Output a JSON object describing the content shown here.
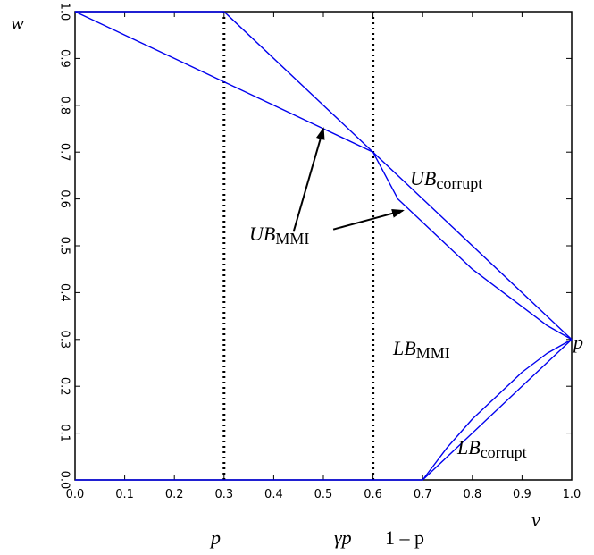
{
  "chart_data": {
    "type": "line",
    "xlim": [
      0,
      1
    ],
    "ylim": [
      0,
      1
    ],
    "grid": false,
    "x_ticks": [
      "0.0",
      "0.1",
      "0.2",
      "0.3",
      "0.4",
      "0.5",
      "0.6",
      "0.7",
      "0.8",
      "0.9",
      "1.0"
    ],
    "y_ticks": [
      "0.0",
      "0.1",
      "0.2",
      "0.3",
      "0.4",
      "0.5",
      "0.6",
      "0.7",
      "0.8",
      "0.9",
      "1.0"
    ],
    "line_color": "#0000ee",
    "vlines": [
      0.3,
      0.6
    ],
    "series": [
      {
        "id": "ub-corrupt",
        "points": [
          [
            0,
            1
          ],
          [
            0.3,
            1
          ],
          [
            0.6,
            0.7
          ],
          [
            1,
            0.3
          ]
        ]
      },
      {
        "id": "ub-mmi",
        "points": [
          [
            0,
            1
          ],
          [
            0.1,
            0.95
          ],
          [
            0.2,
            0.9
          ],
          [
            0.3,
            0.85
          ],
          [
            0.4,
            0.8
          ],
          [
            0.5,
            0.75
          ],
          [
            0.6,
            0.7
          ],
          [
            0.65,
            0.6
          ],
          [
            0.7,
            0.55
          ],
          [
            0.75,
            0.5
          ],
          [
            0.8,
            0.45
          ],
          [
            0.85,
            0.41
          ],
          [
            0.9,
            0.37
          ],
          [
            0.95,
            0.33
          ],
          [
            1,
            0.3
          ]
        ]
      },
      {
        "id": "lb-corrupt",
        "points": [
          [
            0,
            0
          ],
          [
            0.7,
            0
          ],
          [
            1,
            0.3
          ]
        ]
      },
      {
        "id": "lb-mmi",
        "points": [
          [
            0.7,
            0
          ],
          [
            0.75,
            0.07
          ],
          [
            0.8,
            0.13
          ],
          [
            0.85,
            0.18
          ],
          [
            0.9,
            0.23
          ],
          [
            0.95,
            0.27
          ],
          [
            1,
            0.3
          ]
        ]
      }
    ],
    "labels": {
      "y_axis": "w",
      "x_axis": "v",
      "p_right": "p",
      "below_axis": [
        {
          "at": 0.3,
          "text": "p"
        },
        {
          "at": 0.6,
          "text": "γp"
        },
        {
          "at": 0.7,
          "text": "1 – p"
        }
      ],
      "ub_corrupt": {
        "base": "UB",
        "sub": "corrupt"
      },
      "ub_mmi": {
        "base": "UB",
        "sub": "MMI"
      },
      "lb_mmi": {
        "base": "LB",
        "sub": "MMI"
      },
      "lb_corrupt": {
        "base": "LB",
        "sub": "corrupt"
      }
    },
    "arrows": [
      {
        "from": [
          0.44,
          0.53
        ],
        "to": [
          0.5,
          0.75
        ]
      },
      {
        "from": [
          0.52,
          0.535
        ],
        "to": [
          0.66,
          0.575
        ]
      }
    ]
  }
}
